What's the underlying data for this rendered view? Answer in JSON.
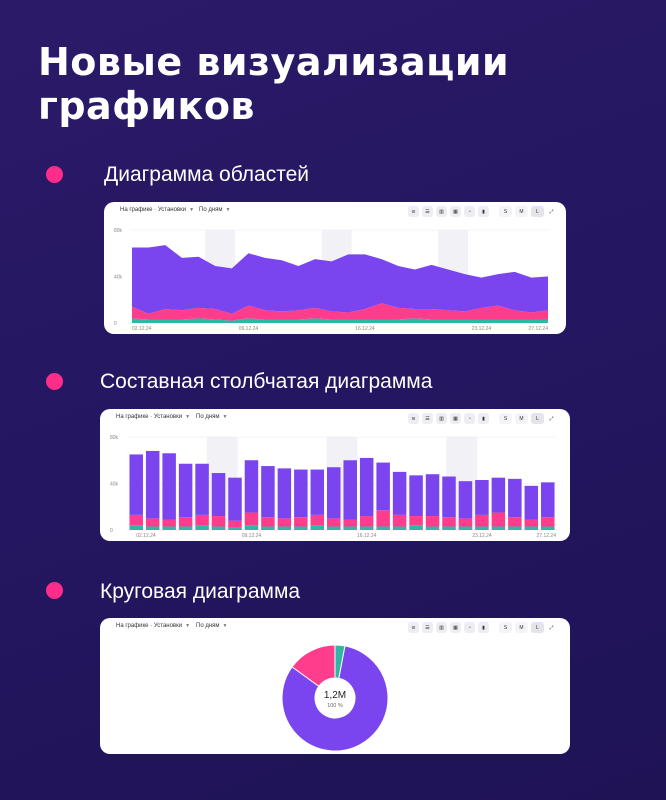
{
  "headline": "Новые визуализации графиков",
  "colors": {
    "background": "#24165f",
    "accent_dot": "#ff2d8a",
    "series_purple": "#7a45ee",
    "series_pink": "#ff3d8c",
    "series_teal": "#2fb6a4"
  },
  "sections": [
    {
      "label": "Диаграмма областей"
    },
    {
      "label": "Составная столбчатая диаграмма"
    },
    {
      "label": "Круговая диаграмма"
    }
  ],
  "toolbar": {
    "metric_select": "На графике · Установки",
    "period_select": "По дням",
    "icons": [
      "area-chart-icon",
      "stacked-bar-icon",
      "bar-chart-icon",
      "stacked-area-icon",
      "pie-chart-icon",
      "column-chart-icon"
    ],
    "sizes": [
      "S",
      "M",
      "L"
    ],
    "active_size": "L"
  },
  "chart_data": [
    {
      "type": "area",
      "stacked": true,
      "yticks": [
        "80k",
        "40k",
        "0"
      ],
      "xticks": [
        "02.12.24",
        "09.12.24",
        "16.12.24",
        "23.12.24",
        "27.12.24"
      ],
      "series": [
        {
          "values": [
            4,
            3,
            3,
            3,
            4,
            3,
            2,
            4,
            3,
            3,
            3,
            4,
            3,
            3,
            3,
            3,
            3,
            4,
            3,
            3,
            3,
            3,
            3,
            3,
            3,
            3
          ]
        },
        {
          "values": [
            10,
            5,
            9,
            8,
            9,
            9,
            6,
            11,
            8,
            7,
            8,
            9,
            7,
            6,
            9,
            14,
            10,
            8,
            9,
            8,
            7,
            10,
            12,
            8,
            6,
            8
          ]
        },
        {
          "values": [
            51,
            57,
            55,
            45,
            44,
            37,
            39,
            45,
            45,
            44,
            38,
            42,
            43,
            50,
            47,
            38,
            36,
            34,
            38,
            35,
            32,
            26,
            27,
            33,
            30,
            29
          ]
        }
      ]
    },
    {
      "type": "bar",
      "stacked": true,
      "yticks": [
        "80k",
        "40k",
        "0"
      ],
      "xticks": [
        "02.12.24",
        "09.12.24",
        "16.12.24",
        "23.12.24",
        "27.12.24"
      ],
      "series": [
        {
          "values": [
            4,
            3,
            3,
            3,
            4,
            3,
            2,
            4,
            3,
            3,
            3,
            4,
            3,
            3,
            3,
            3,
            3,
            4,
            3,
            3,
            3,
            3,
            3,
            3,
            3,
            3
          ]
        },
        {
          "values": [
            9,
            7,
            6,
            8,
            9,
            9,
            6,
            11,
            8,
            7,
            8,
            9,
            7,
            6,
            9,
            14,
            10,
            8,
            9,
            8,
            7,
            10,
            12,
            8,
            6,
            8
          ]
        },
        {
          "values": [
            52,
            58,
            57,
            46,
            44,
            37,
            37,
            45,
            44,
            43,
            41,
            39,
            44,
            51,
            50,
            41,
            37,
            35,
            36,
            35,
            32,
            30,
            30,
            33,
            29,
            30
          ]
        }
      ]
    },
    {
      "type": "pie",
      "center_value": "1,2M",
      "center_percent": "100 %",
      "slices": [
        {
          "value": 82
        },
        {
          "value": 15
        },
        {
          "value": 3
        }
      ]
    }
  ]
}
